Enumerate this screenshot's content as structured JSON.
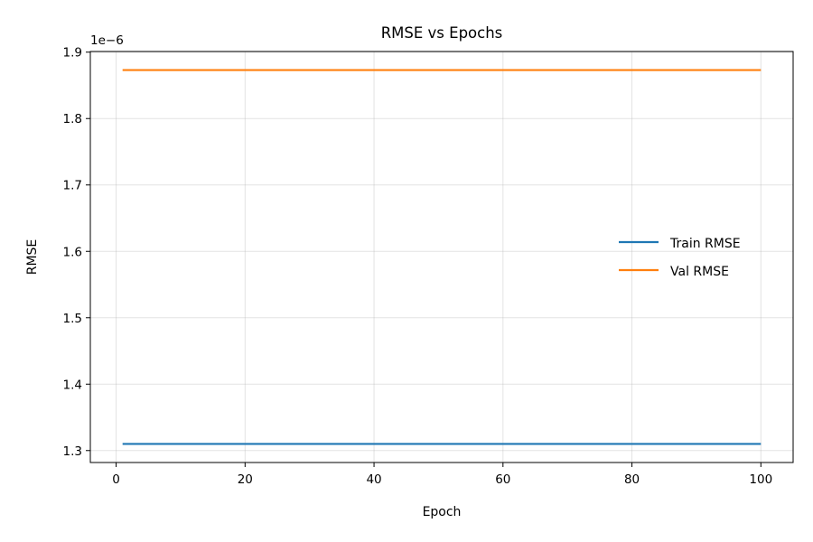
{
  "chart_data": {
    "type": "line",
    "title": "RMSE vs Epochs",
    "xlabel": "Epoch",
    "ylabel": "RMSE",
    "y_offset_label": "1e−6",
    "xlim": [
      -4,
      105
    ],
    "ylim": [
      1.282,
      1.901
    ],
    "x_ticks": [
      0,
      20,
      40,
      60,
      80,
      100
    ],
    "y_ticks": [
      1.3,
      1.4,
      1.5,
      1.6,
      1.7,
      1.8,
      1.9
    ],
    "x_tick_labels": [
      "0",
      "20",
      "40",
      "60",
      "80",
      "100"
    ],
    "y_tick_labels": [
      "1.3",
      "1.4",
      "1.5",
      "1.6",
      "1.7",
      "1.8",
      "1.9"
    ],
    "grid": true,
    "legend_position": "right",
    "x": [
      1,
      100
    ],
    "series": [
      {
        "name": "Train RMSE",
        "color": "#1f77b4",
        "values": [
          1.31,
          1.31
        ]
      },
      {
        "name": "Val RMSE",
        "color": "#ff7f0e",
        "values": [
          1.873,
          1.873
        ]
      }
    ]
  }
}
